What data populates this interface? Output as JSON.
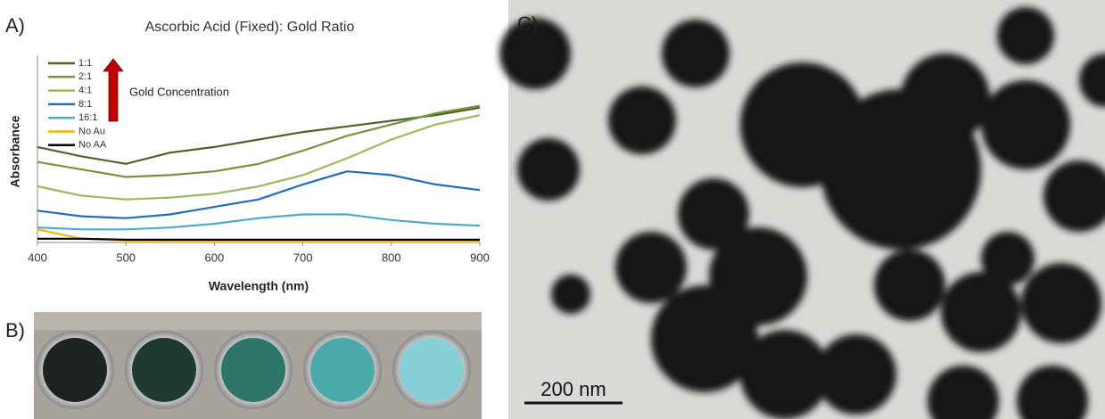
{
  "chart_data": {
    "type": "line",
    "title": "Ascorbic Acid (Fixed): Gold Ratio",
    "x_label": "Wavelength (nm)",
    "y_label": "Absorbance",
    "annotation": "Gold Concentration",
    "x": [
      400,
      450,
      500,
      550,
      600,
      650,
      700,
      750,
      800,
      850,
      900
    ],
    "xlim": [
      400,
      900
    ],
    "xticks": [
      400,
      500,
      600,
      700,
      800,
      900
    ],
    "ylim": [
      0,
      1
    ],
    "series": [
      {
        "name": "1:1",
        "color": "#4f6228",
        "values": [
          0.51,
          0.46,
          0.42,
          0.48,
          0.51,
          0.55,
          0.59,
          0.62,
          0.65,
          0.68,
          0.72
        ]
      },
      {
        "name": "2:1",
        "color": "#77933c",
        "values": [
          0.43,
          0.39,
          0.35,
          0.36,
          0.38,
          0.42,
          0.49,
          0.57,
          0.63,
          0.69,
          0.73
        ]
      },
      {
        "name": "4:1",
        "color": "#9bbb59",
        "values": [
          0.3,
          0.25,
          0.23,
          0.24,
          0.26,
          0.3,
          0.36,
          0.45,
          0.55,
          0.63,
          0.68
        ]
      },
      {
        "name": "8:1",
        "color": "#1f6fbf",
        "values": [
          0.17,
          0.14,
          0.13,
          0.15,
          0.19,
          0.23,
          0.31,
          0.38,
          0.36,
          0.31,
          0.28
        ]
      },
      {
        "name": "16:1",
        "color": "#4bacc6",
        "values": [
          0.08,
          0.07,
          0.07,
          0.08,
          0.1,
          0.13,
          0.15,
          0.15,
          0.12,
          0.1,
          0.09
        ]
      },
      {
        "name": "No Au",
        "color": "#f2b800",
        "values": [
          0.07,
          0.02,
          0.01,
          0.01,
          0.01,
          0.01,
          0.01,
          0.01,
          0.01,
          0.01,
          0.01
        ]
      },
      {
        "name": "No AA",
        "color": "#000000",
        "values": [
          0.02,
          0.02,
          0.015,
          0.015,
          0.015,
          0.015,
          0.015,
          0.015,
          0.015,
          0.015,
          0.015
        ]
      }
    ]
  },
  "panel_labels": [
    "A)",
    "B)",
    "C)"
  ],
  "scale_bar": "200 nm"
}
